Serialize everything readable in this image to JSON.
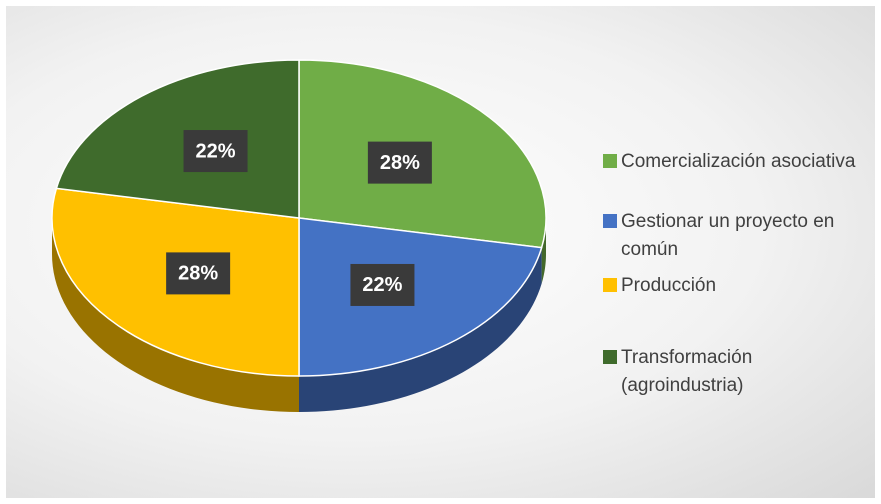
{
  "chart_data": {
    "type": "pie",
    "categories": [
      "Comercialización asociativa",
      "Gestionar un proyecto en común",
      "Producción",
      "Transformación (agroindustria)"
    ],
    "values": [
      28,
      22,
      28,
      22
    ],
    "value_labels": [
      "28%",
      "22%",
      "28%",
      "22%"
    ],
    "colors": [
      "#70ad47",
      "#4472c4",
      "#ffc000",
      "#3f6b2c"
    ],
    "legend": "right"
  }
}
